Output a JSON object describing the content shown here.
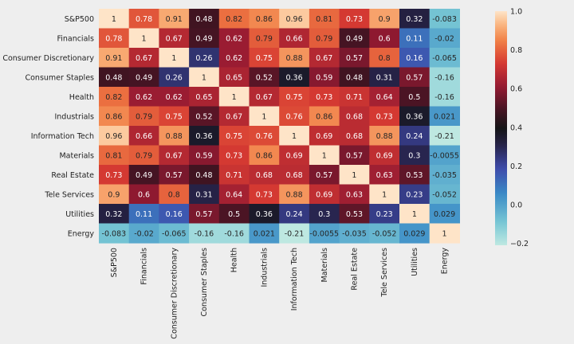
{
  "chart_data": {
    "type": "heatmap",
    "title": "",
    "xlabel": "",
    "ylabel": "",
    "rows": [
      "S&P500",
      "Financials",
      "Consumer Discretionary",
      "Consumer Staples",
      "Health",
      "Industrials",
      "Information Tech",
      "Materials",
      "Real Estate",
      "Tele Services",
      "Utilities",
      "Energy"
    ],
    "columns": [
      "S&P500",
      "Financials",
      "Consumer Discretionary",
      "Consumer Staples",
      "Health",
      "Industrials",
      "Information Tech",
      "Materials",
      "Real Estate",
      "Tele Services",
      "Utilities",
      "Energy"
    ],
    "values": [
      [
        1,
        0.78,
        0.91,
        0.48,
        0.82,
        0.86,
        0.96,
        0.81,
        0.73,
        0.9,
        0.32,
        -0.083
      ],
      [
        0.78,
        1,
        0.67,
        0.49,
        0.62,
        0.79,
        0.66,
        0.79,
        0.49,
        0.6,
        0.11,
        -0.02
      ],
      [
        0.91,
        0.67,
        1,
        0.26,
        0.62,
        0.75,
        0.88,
        0.67,
        0.57,
        0.8,
        0.16,
        -0.065
      ],
      [
        0.48,
        0.49,
        0.26,
        1,
        0.65,
        0.52,
        0.36,
        0.59,
        0.48,
        0.31,
        0.57,
        -0.16
      ],
      [
        0.82,
        0.62,
        0.62,
        0.65,
        1,
        0.67,
        0.75,
        0.73,
        0.71,
        0.64,
        0.5,
        -0.16
      ],
      [
        0.86,
        0.79,
        0.75,
        0.52,
        0.67,
        1,
        0.76,
        0.86,
        0.68,
        0.73,
        0.36,
        0.021
      ],
      [
        0.96,
        0.66,
        0.88,
        0.36,
        0.75,
        0.76,
        1,
        0.69,
        0.68,
        0.88,
        0.24,
        -0.21
      ],
      [
        0.81,
        0.79,
        0.67,
        0.59,
        0.73,
        0.86,
        0.69,
        1,
        0.57,
        0.69,
        0.3,
        -0.0055
      ],
      [
        0.73,
        0.49,
        0.57,
        0.48,
        0.71,
        0.68,
        0.68,
        0.57,
        1,
        0.63,
        0.53,
        -0.035
      ],
      [
        0.9,
        0.6,
        0.8,
        0.31,
        0.64,
        0.73,
        0.88,
        0.69,
        0.63,
        1,
        0.23,
        -0.052
      ],
      [
        0.32,
        0.11,
        0.16,
        0.57,
        0.5,
        0.36,
        0.24,
        0.3,
        0.53,
        0.23,
        1,
        0.029
      ],
      [
        -0.083,
        -0.02,
        -0.065,
        -0.16,
        -0.16,
        0.021,
        -0.21,
        -0.0055,
        -0.035,
        -0.052,
        0.029,
        1
      ]
    ],
    "colorbar": {
      "vmin": -0.21,
      "vmax": 1.0,
      "ticks": [
        1.0,
        0.8,
        0.6,
        0.4,
        0.2,
        0.0,
        -0.2
      ],
      "tick_labels": [
        "1.0",
        "0.8",
        "0.6",
        "0.4",
        "0.2",
        "0.0",
        "−0.2"
      ],
      "colormap": "icefire"
    }
  }
}
